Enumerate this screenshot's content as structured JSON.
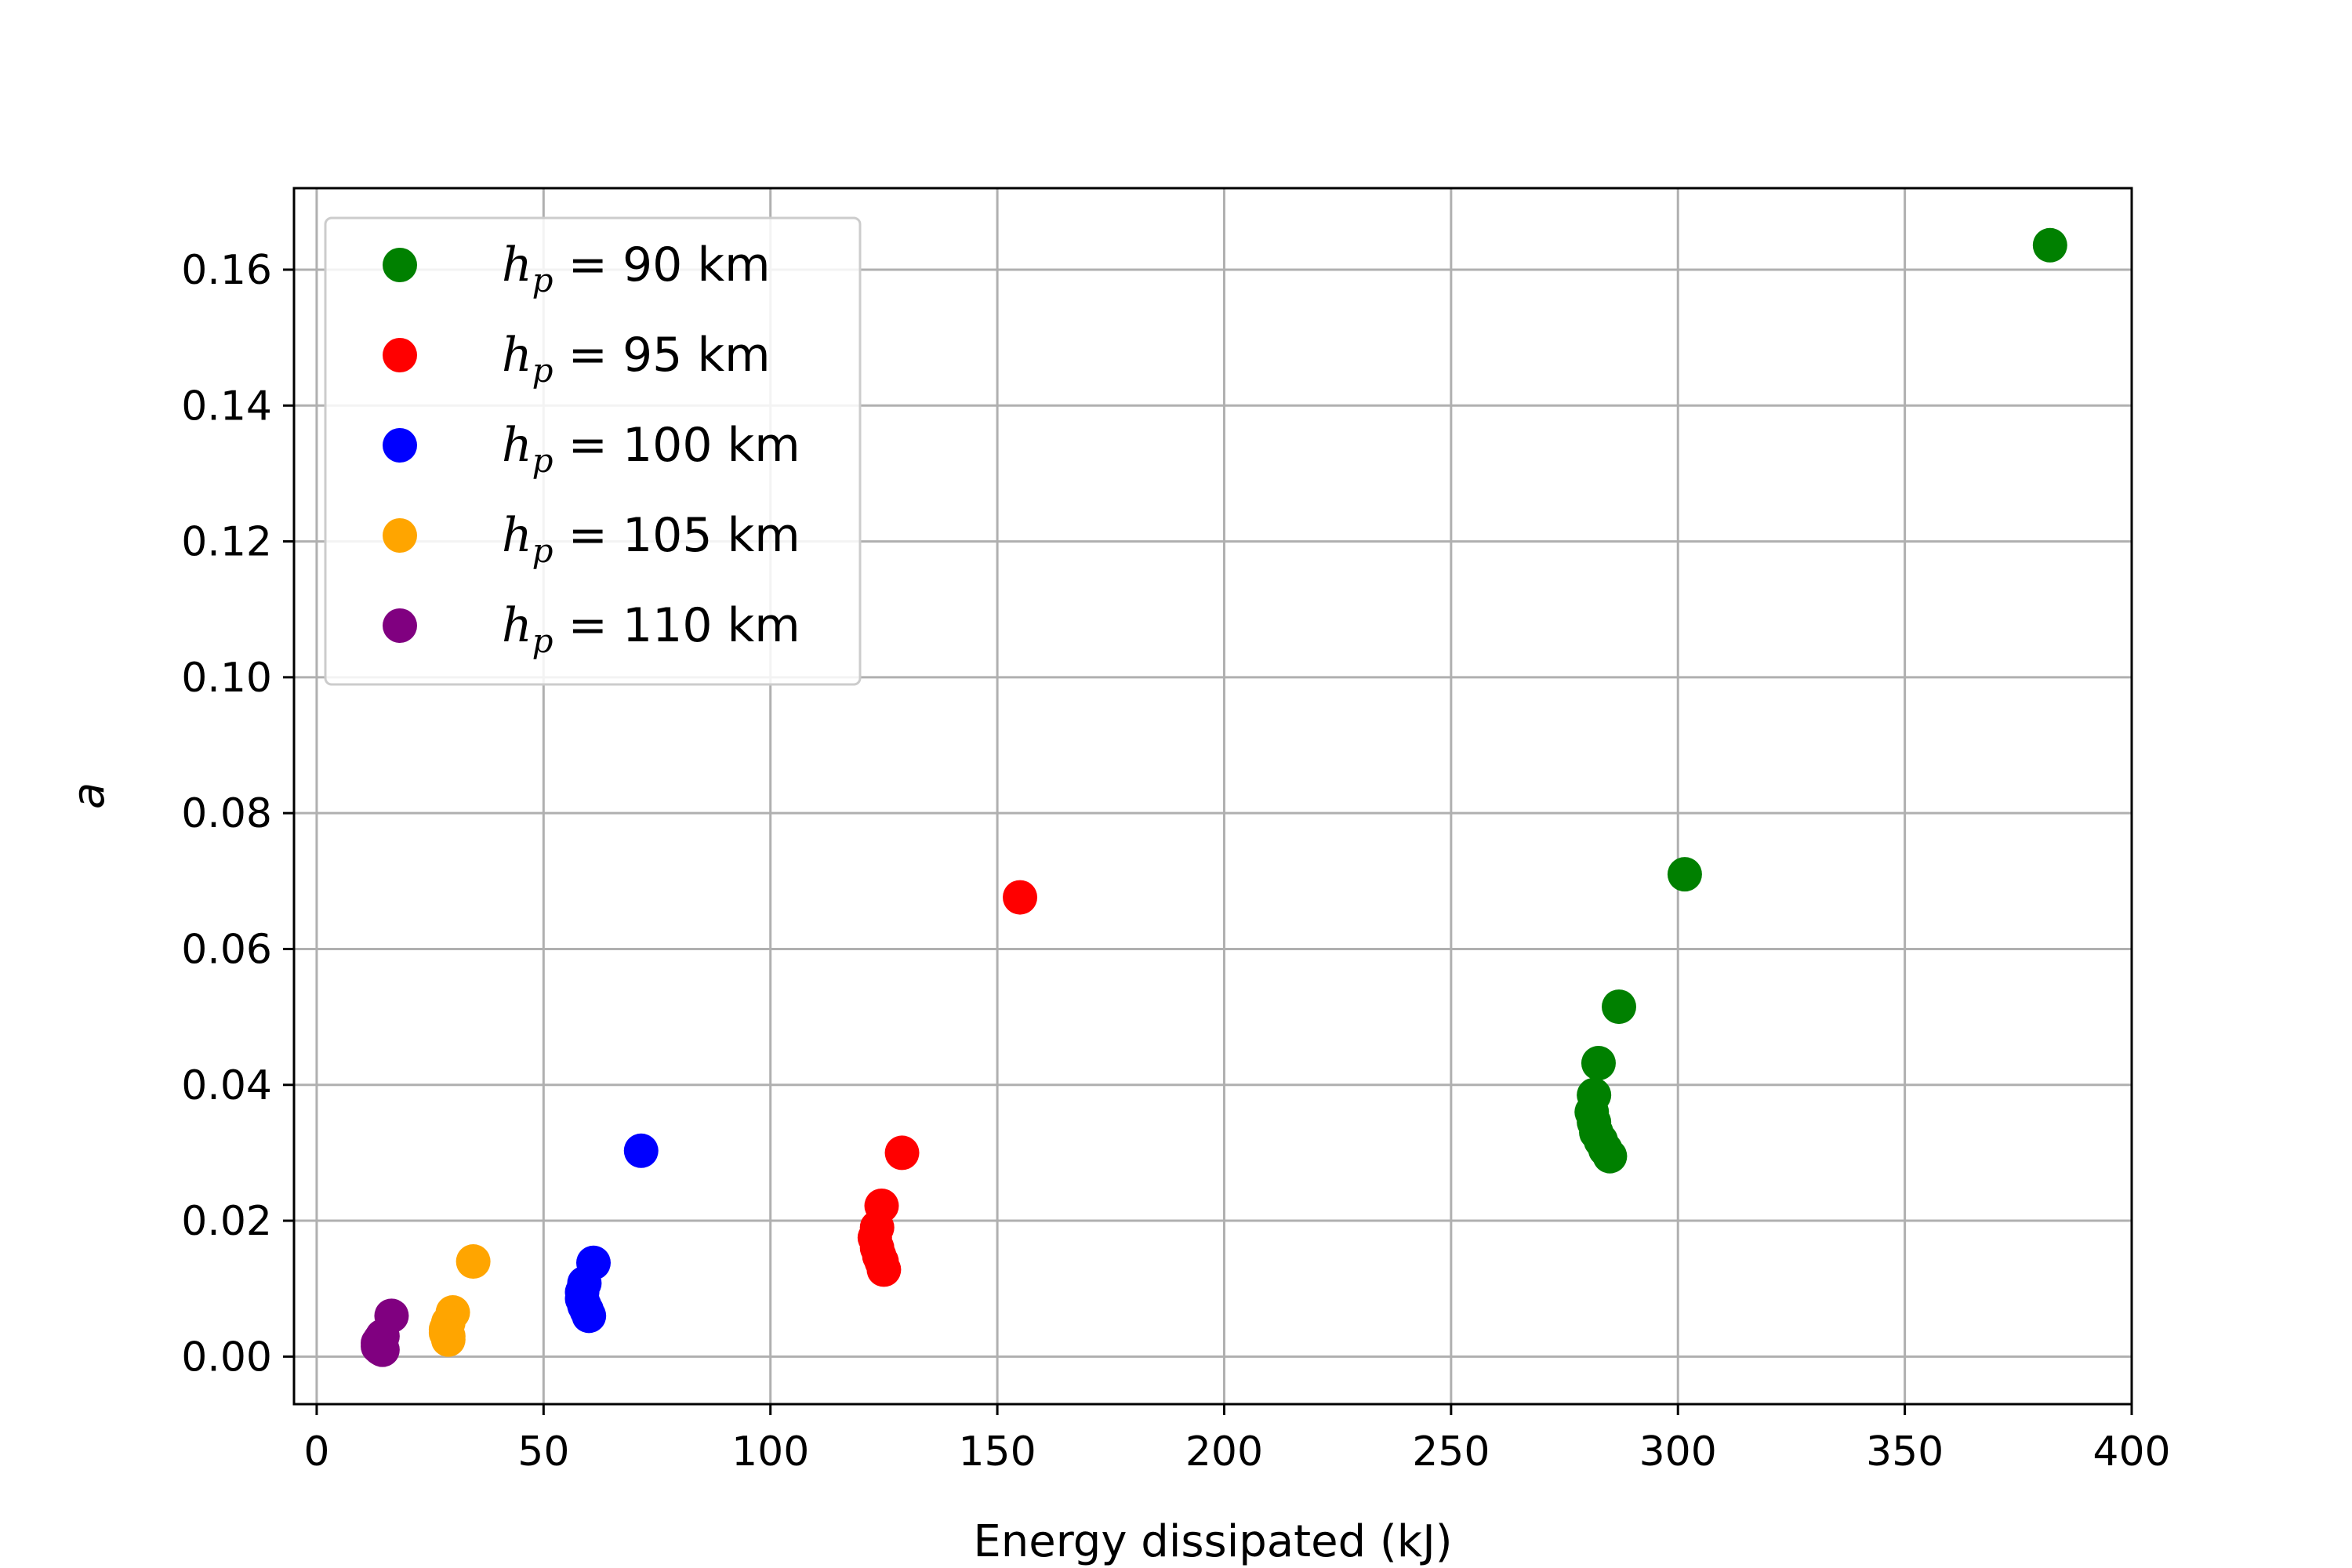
{
  "chart_data": {
    "type": "scatter",
    "title": "",
    "xlabel": "Energy dissipated (kJ)",
    "ylabel": "a",
    "xlim": [
      -5,
      400
    ],
    "ylim": [
      -0.007,
      0.172
    ],
    "xticks": [
      0,
      50,
      100,
      150,
      200,
      250,
      300,
      350,
      400
    ],
    "xtick_labels": [
      "0",
      "50",
      "100",
      "150",
      "200",
      "250",
      "300",
      "350",
      "400"
    ],
    "yticks": [
      0.0,
      0.02,
      0.04,
      0.06,
      0.08,
      0.1,
      0.12,
      0.14,
      0.16
    ],
    "ytick_labels": [
      "0.00",
      "0.02",
      "0.04",
      "0.06",
      "0.08",
      "0.10",
      "0.12",
      "0.14",
      "0.16"
    ],
    "grid": true,
    "legend_position": "top-left",
    "series": [
      {
        "name": "h_p = 90 km",
        "legend_sym": "h",
        "legend_sub": "p",
        "legend_rest": " = 90 km",
        "color": "#008000",
        "points": [
          [
            382,
            0.1636
          ],
          [
            301.5,
            0.071
          ],
          [
            287,
            0.0515
          ],
          [
            282.5,
            0.0432
          ],
          [
            281.5,
            0.0385
          ],
          [
            281,
            0.036
          ],
          [
            281.5,
            0.0345
          ],
          [
            282,
            0.033
          ],
          [
            283,
            0.0318
          ],
          [
            284,
            0.0305
          ],
          [
            285,
            0.0295
          ]
        ]
      },
      {
        "name": "h_p = 95 km",
        "legend_sym": "h",
        "legend_sub": "p",
        "legend_rest": " = 95 km",
        "color": "#ff0000",
        "points": [
          [
            155,
            0.0676
          ],
          [
            129,
            0.03
          ],
          [
            124.5,
            0.0222
          ],
          [
            123.5,
            0.019
          ],
          [
            123,
            0.0175
          ],
          [
            123.5,
            0.016
          ],
          [
            124,
            0.0148
          ],
          [
            124.5,
            0.014
          ],
          [
            125,
            0.0128
          ]
        ]
      },
      {
        "name": "h_p = 100 km",
        "legend_sym": "h",
        "legend_sub": "p",
        "legend_rest": " = 100 km",
        "color": "#0000ff",
        "points": [
          [
            71.5,
            0.0303
          ],
          [
            61,
            0.0138
          ],
          [
            59,
            0.0108
          ],
          [
            58.5,
            0.0095
          ],
          [
            58.5,
            0.0085
          ],
          [
            59,
            0.0075
          ],
          [
            59.5,
            0.0068
          ],
          [
            60,
            0.006
          ]
        ]
      },
      {
        "name": "h_p = 105 km",
        "legend_sym": "h",
        "legend_sub": "p",
        "legend_rest": " = 105 km",
        "color": "#ffa500",
        "points": [
          [
            34.5,
            0.014
          ],
          [
            30,
            0.0065
          ],
          [
            29,
            0.005
          ],
          [
            28.5,
            0.004
          ],
          [
            28.5,
            0.0035
          ],
          [
            29,
            0.003
          ],
          [
            29,
            0.0025
          ]
        ]
      },
      {
        "name": "h_p = 110 km",
        "legend_sym": "h",
        "legend_sub": "p",
        "legend_rest": " = 110 km",
        "color": "#800080",
        "points": [
          [
            16.5,
            0.006
          ],
          [
            14.5,
            0.003
          ],
          [
            14,
            0.0025
          ],
          [
            13.5,
            0.002
          ],
          [
            13.5,
            0.0015
          ],
          [
            14,
            0.0012
          ],
          [
            14.5,
            0.001
          ]
        ]
      }
    ]
  }
}
